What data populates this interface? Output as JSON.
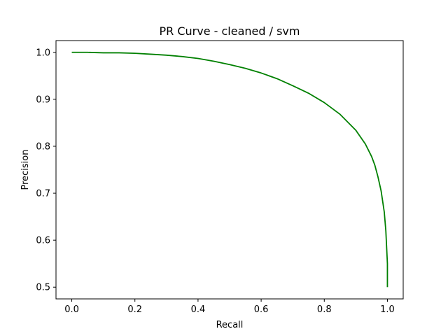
{
  "chart_data": {
    "type": "line",
    "title": "PR Curve - cleaned / svm",
    "xlabel": "Recall",
    "ylabel": "Precision",
    "xlim": [
      -0.05,
      1.05
    ],
    "ylim": [
      0.475,
      1.025
    ],
    "grid": false,
    "x_ticks": [
      0.0,
      0.2,
      0.4,
      0.6,
      0.8,
      1.0
    ],
    "x_tick_labels": [
      "0.0",
      "0.2",
      "0.4",
      "0.6",
      "0.8",
      "1.0"
    ],
    "y_ticks": [
      0.5,
      0.6,
      0.7,
      0.8,
      0.9,
      1.0
    ],
    "y_tick_labels": [
      "0.5",
      "0.6",
      "0.7",
      "0.8",
      "0.9",
      "1.0"
    ],
    "colors": {
      "series": "#008000",
      "axes": "#000000"
    },
    "series": [
      {
        "x": [
          0.0,
          0.05,
          0.1,
          0.15,
          0.2,
          0.25,
          0.3,
          0.35,
          0.4,
          0.45,
          0.5,
          0.55,
          0.6,
          0.65,
          0.7,
          0.75,
          0.8,
          0.85,
          0.9,
          0.93,
          0.95,
          0.96,
          0.97,
          0.98,
          0.99,
          0.995,
          1.0,
          1.0
        ],
        "y": [
          1.0,
          1.0,
          0.999,
          0.999,
          0.998,
          0.996,
          0.994,
          0.991,
          0.987,
          0.981,
          0.974,
          0.966,
          0.956,
          0.944,
          0.929,
          0.913,
          0.893,
          0.868,
          0.834,
          0.805,
          0.778,
          0.76,
          0.735,
          0.705,
          0.66,
          0.62,
          0.55,
          0.5
        ]
      }
    ]
  }
}
